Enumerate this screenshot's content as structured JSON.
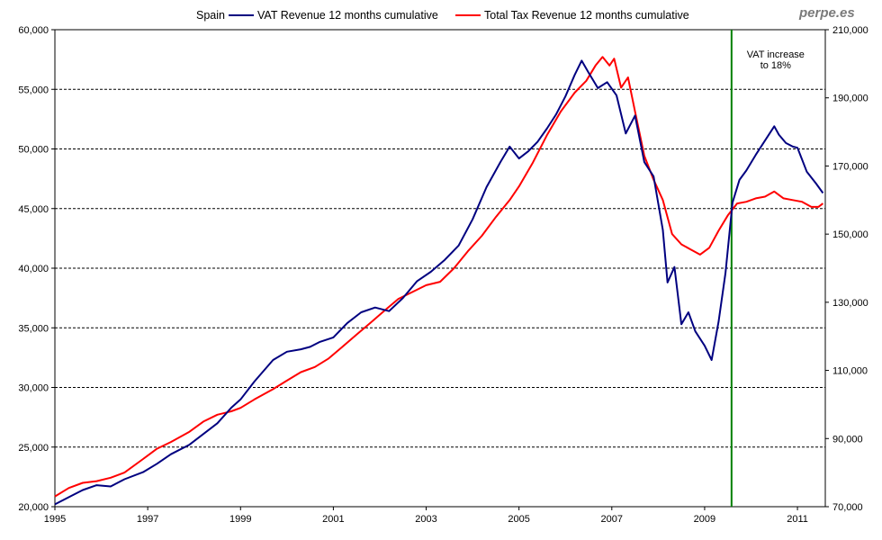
{
  "brand": "perpe.es",
  "chart_data": {
    "type": "line",
    "title": "Spain",
    "legend": [
      "VAT Revenue 12 months cumulative",
      "Total Tax Revenue 12 months cumulative"
    ],
    "colors": {
      "vat": "#000080",
      "total": "#ff0000",
      "marker": "#008000",
      "grid": "#000000"
    },
    "x_ticks": [
      "1995",
      "1997",
      "1999",
      "2001",
      "2003",
      "2005",
      "2007",
      "2009",
      "2011"
    ],
    "xlim": [
      1995.0,
      2011.6
    ],
    "left_axis": {
      "min": 20000,
      "max": 60000,
      "ticks": [
        "20,000",
        "25,000",
        "30,000",
        "35,000",
        "40,000",
        "45,000",
        "50,000",
        "55,000",
        "60,000"
      ]
    },
    "right_axis": {
      "min": 70000,
      "max": 210000,
      "ticks": [
        "70,000",
        "90,000",
        "110,000",
        "130,000",
        "150,000",
        "170,000",
        "190,000",
        "210,000"
      ]
    },
    "gridlines_left": [
      25000,
      30000,
      35000,
      40000,
      45000,
      50000,
      55000
    ],
    "vertical_marker": {
      "x": 2009.58,
      "label_lines": [
        "VAT increase",
        "to 18%"
      ]
    },
    "series": [
      {
        "name": "VAT Revenue 12 months cumulative",
        "axis": "left",
        "x": [
          1995.0,
          1995.3,
          1995.6,
          1995.9,
          1996.2,
          1996.5,
          1996.9,
          1997.2,
          1997.5,
          1997.9,
          1998.2,
          1998.5,
          1998.8,
          1999.0,
          1999.3,
          1999.7,
          2000.0,
          2000.3,
          2000.5,
          2000.7,
          2001.0,
          2001.3,
          2001.6,
          2001.9,
          2002.2,
          2002.5,
          2002.8,
          2003.1,
          2003.4,
          2003.7,
          2004.0,
          2004.3,
          2004.6,
          2004.8,
          2005.0,
          2005.2,
          2005.4,
          2005.6,
          2005.8,
          2006.0,
          2006.2,
          2006.35,
          2006.5,
          2006.7,
          2006.9,
          2007.1,
          2007.3,
          2007.5,
          2007.7,
          2007.9,
          2008.1,
          2008.2,
          2008.35,
          2008.5,
          2008.65,
          2008.8,
          2009.0,
          2009.15,
          2009.3,
          2009.45,
          2009.6,
          2009.75,
          2009.9,
          2010.1,
          2010.3,
          2010.5,
          2010.6,
          2010.75,
          2010.9,
          2011.0,
          2011.2,
          2011.4,
          2011.55
        ],
        "values": [
          20200,
          20800,
          21400,
          21800,
          21700,
          22300,
          22900,
          23600,
          24400,
          25200,
          26100,
          27000,
          28300,
          29000,
          30500,
          32300,
          33000,
          33200,
          33400,
          33800,
          34200,
          35400,
          36300,
          36700,
          36400,
          37500,
          38900,
          39700,
          40700,
          41900,
          44100,
          46800,
          48900,
          50200,
          49200,
          49800,
          50600,
          51700,
          52900,
          54400,
          56200,
          57400,
          56400,
          55100,
          55600,
          54500,
          51300,
          52800,
          48900,
          47700,
          43200,
          38800,
          40100,
          35300,
          36300,
          34700,
          33500,
          32300,
          35500,
          39600,
          45500,
          47400,
          48200,
          49500,
          50700,
          51900,
          51200,
          50500,
          50200,
          50100,
          48100,
          47100,
          46300
        ]
      },
      {
        "name": "Total Tax Revenue 12 months cumulative",
        "axis": "right",
        "x": [
          1995.0,
          1995.3,
          1995.6,
          1995.9,
          1996.2,
          1996.5,
          1996.9,
          1997.2,
          1997.5,
          1997.9,
          1998.2,
          1998.5,
          1998.8,
          1999.0,
          1999.3,
          1999.7,
          2000.0,
          2000.3,
          2000.6,
          2000.9,
          2001.2,
          2001.5,
          2001.8,
          2002.1,
          2002.4,
          2002.7,
          2003.0,
          2003.3,
          2003.6,
          2003.9,
          2004.2,
          2004.5,
          2004.8,
          2005.0,
          2005.3,
          2005.6,
          2005.9,
          2006.2,
          2006.45,
          2006.65,
          2006.8,
          2006.95,
          2007.05,
          2007.2,
          2007.35,
          2007.5,
          2007.7,
          2007.9,
          2008.1,
          2008.3,
          2008.5,
          2008.7,
          2008.9,
          2009.1,
          2009.3,
          2009.5,
          2009.7,
          2009.9,
          2010.1,
          2010.3,
          2010.5,
          2010.7,
          2010.9,
          2011.1,
          2011.3,
          2011.45,
          2011.55
        ],
        "values": [
          73000,
          75500,
          77000,
          77500,
          78500,
          80000,
          84000,
          87000,
          89000,
          92000,
          95000,
          97000,
          98000,
          99000,
          101500,
          104500,
          107000,
          109500,
          111000,
          113500,
          117000,
          120500,
          124000,
          127500,
          131000,
          133000,
          135000,
          136000,
          140000,
          145000,
          149500,
          155000,
          160000,
          164000,
          171000,
          179000,
          186000,
          191500,
          195000,
          199500,
          202000,
          199500,
          201500,
          193000,
          196000,
          186000,
          173000,
          166000,
          160000,
          150000,
          147000,
          145500,
          144000,
          146000,
          151000,
          155500,
          159000,
          159500,
          160500,
          161000,
          162500,
          160500,
          160000,
          159500,
          158000,
          158000,
          159000
        ]
      }
    ]
  }
}
